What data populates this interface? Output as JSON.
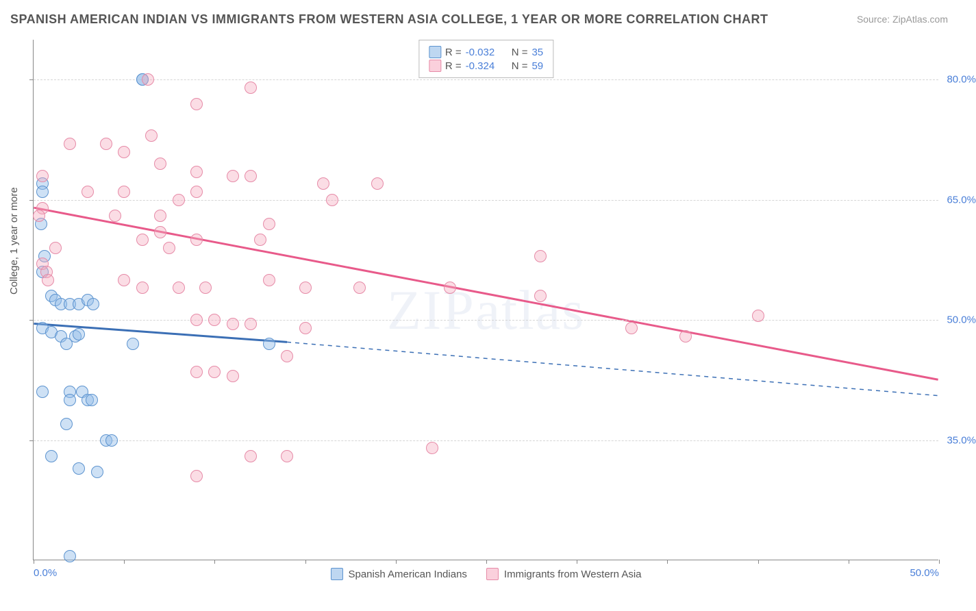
{
  "title": "SPANISH AMERICAN INDIAN VS IMMIGRANTS FROM WESTERN ASIA COLLEGE, 1 YEAR OR MORE CORRELATION CHART",
  "source": "Source: ZipAtlas.com",
  "ylabel": "College, 1 year or more",
  "watermark": "ZIPatlas",
  "chart": {
    "type": "scatter",
    "xlim": [
      0,
      50
    ],
    "ylim": [
      20,
      85
    ],
    "xticks": [
      0,
      5,
      10,
      15,
      20,
      25,
      30,
      35,
      40,
      45,
      50
    ],
    "xtick_labels": {
      "0": "0.0%",
      "50": "50.0%"
    },
    "yticks": [
      35,
      50,
      65,
      80
    ],
    "ytick_labels": {
      "35": "35.0%",
      "50": "50.0%",
      "65": "65.0%",
      "80": "80.0%"
    },
    "ygrid": [
      35,
      50,
      65,
      80
    ],
    "background_color": "#ffffff",
    "grid_color": "#d5d5d5",
    "axis_color": "#888888",
    "marker_radius": 9,
    "label_fontsize": 15,
    "tick_color": "#4a7fd8"
  },
  "series": [
    {
      "id": "blue",
      "label": "Spanish American Indians",
      "color_fill": "rgba(147,189,232,0.45)",
      "color_stroke": "#5c93cf",
      "line_color": "#3b6fb5",
      "R": "-0.032",
      "N": "35",
      "trend": {
        "x1": 0,
        "y1": 49.5,
        "x2": 14,
        "y2": 47.2,
        "x_dash_end": 50,
        "y_dash_end": 40.5
      },
      "points": [
        [
          0.5,
          67
        ],
        [
          0.5,
          66
        ],
        [
          0.4,
          62
        ],
        [
          0.6,
          58
        ],
        [
          0.5,
          56
        ],
        [
          6,
          80
        ],
        [
          1,
          53
        ],
        [
          1.2,
          52.5
        ],
        [
          1.5,
          52
        ],
        [
          2,
          52
        ],
        [
          2.5,
          52
        ],
        [
          3,
          52.5
        ],
        [
          3.3,
          52
        ],
        [
          0.5,
          49
        ],
        [
          1,
          48.5
        ],
        [
          1.5,
          48
        ],
        [
          2.3,
          48
        ],
        [
          2.5,
          48.2
        ],
        [
          1.8,
          47
        ],
        [
          0.5,
          41
        ],
        [
          2,
          41
        ],
        [
          2.7,
          41
        ],
        [
          2,
          40
        ],
        [
          3,
          40
        ],
        [
          3.2,
          40
        ],
        [
          1.8,
          37
        ],
        [
          4,
          35
        ],
        [
          4.3,
          35
        ],
        [
          1,
          33
        ],
        [
          2.5,
          31.5
        ],
        [
          3.5,
          31
        ],
        [
          5.5,
          47
        ],
        [
          13,
          47
        ],
        [
          2,
          20.5
        ],
        [
          6,
          80
        ]
      ]
    },
    {
      "id": "pink",
      "label": "Immigrants from Western Asia",
      "color_fill": "rgba(246,170,191,0.40)",
      "color_stroke": "#e68aa7",
      "line_color": "#e85a8a",
      "R": "-0.324",
      "N": "59",
      "trend": {
        "x1": 0,
        "y1": 64,
        "x2": 50,
        "y2": 42.5
      },
      "points": [
        [
          6.3,
          80
        ],
        [
          12,
          79
        ],
        [
          2,
          72
        ],
        [
          4,
          72
        ],
        [
          5,
          71
        ],
        [
          7,
          69.5
        ],
        [
          0.5,
          68
        ],
        [
          9,
          77
        ],
        [
          3,
          66
        ],
        [
          5,
          66
        ],
        [
          9,
          66
        ],
        [
          8,
          65
        ],
        [
          7,
          63
        ],
        [
          9,
          68.5
        ],
        [
          11,
          68
        ],
        [
          12,
          68
        ],
        [
          16,
          67
        ],
        [
          19,
          67
        ],
        [
          13,
          62
        ],
        [
          0.5,
          64
        ],
        [
          0.3,
          63
        ],
        [
          0.5,
          57
        ],
        [
          0.7,
          56
        ],
        [
          6,
          60
        ],
        [
          7,
          61
        ],
        [
          9,
          60
        ],
        [
          5,
          55
        ],
        [
          6,
          54
        ],
        [
          8,
          54
        ],
        [
          9.5,
          54
        ],
        [
          13,
          55
        ],
        [
          15,
          54
        ],
        [
          18,
          54
        ],
        [
          10,
          50
        ],
        [
          11,
          49.5
        ],
        [
          12,
          49.5
        ],
        [
          15,
          49
        ],
        [
          16.5,
          65
        ],
        [
          23,
          54
        ],
        [
          28,
          58
        ],
        [
          28,
          53
        ],
        [
          33,
          49
        ],
        [
          36,
          48
        ],
        [
          40,
          50.5
        ],
        [
          9,
          43.5
        ],
        [
          10,
          43.5
        ],
        [
          11,
          43
        ],
        [
          14,
          45.5
        ],
        [
          9,
          30.5
        ],
        [
          12,
          33
        ],
        [
          14,
          33
        ],
        [
          22,
          34
        ],
        [
          9,
          50
        ],
        [
          0.8,
          55
        ],
        [
          1.2,
          59
        ],
        [
          7.5,
          59
        ],
        [
          4.5,
          63
        ],
        [
          6.5,
          73
        ],
        [
          12.5,
          60
        ]
      ]
    }
  ],
  "legend_top": {
    "rows": [
      {
        "swatch": "blue",
        "r_label": "R =",
        "r": "-0.032",
        "n_label": "N =",
        "n": "35"
      },
      {
        "swatch": "pink",
        "r_label": "R =",
        "r": "-0.324",
        "n_label": "N =",
        "n": "59"
      }
    ]
  },
  "legend_bottom": [
    {
      "swatch": "blue",
      "label": "Spanish American Indians"
    },
    {
      "swatch": "pink",
      "label": "Immigrants from Western Asia"
    }
  ]
}
